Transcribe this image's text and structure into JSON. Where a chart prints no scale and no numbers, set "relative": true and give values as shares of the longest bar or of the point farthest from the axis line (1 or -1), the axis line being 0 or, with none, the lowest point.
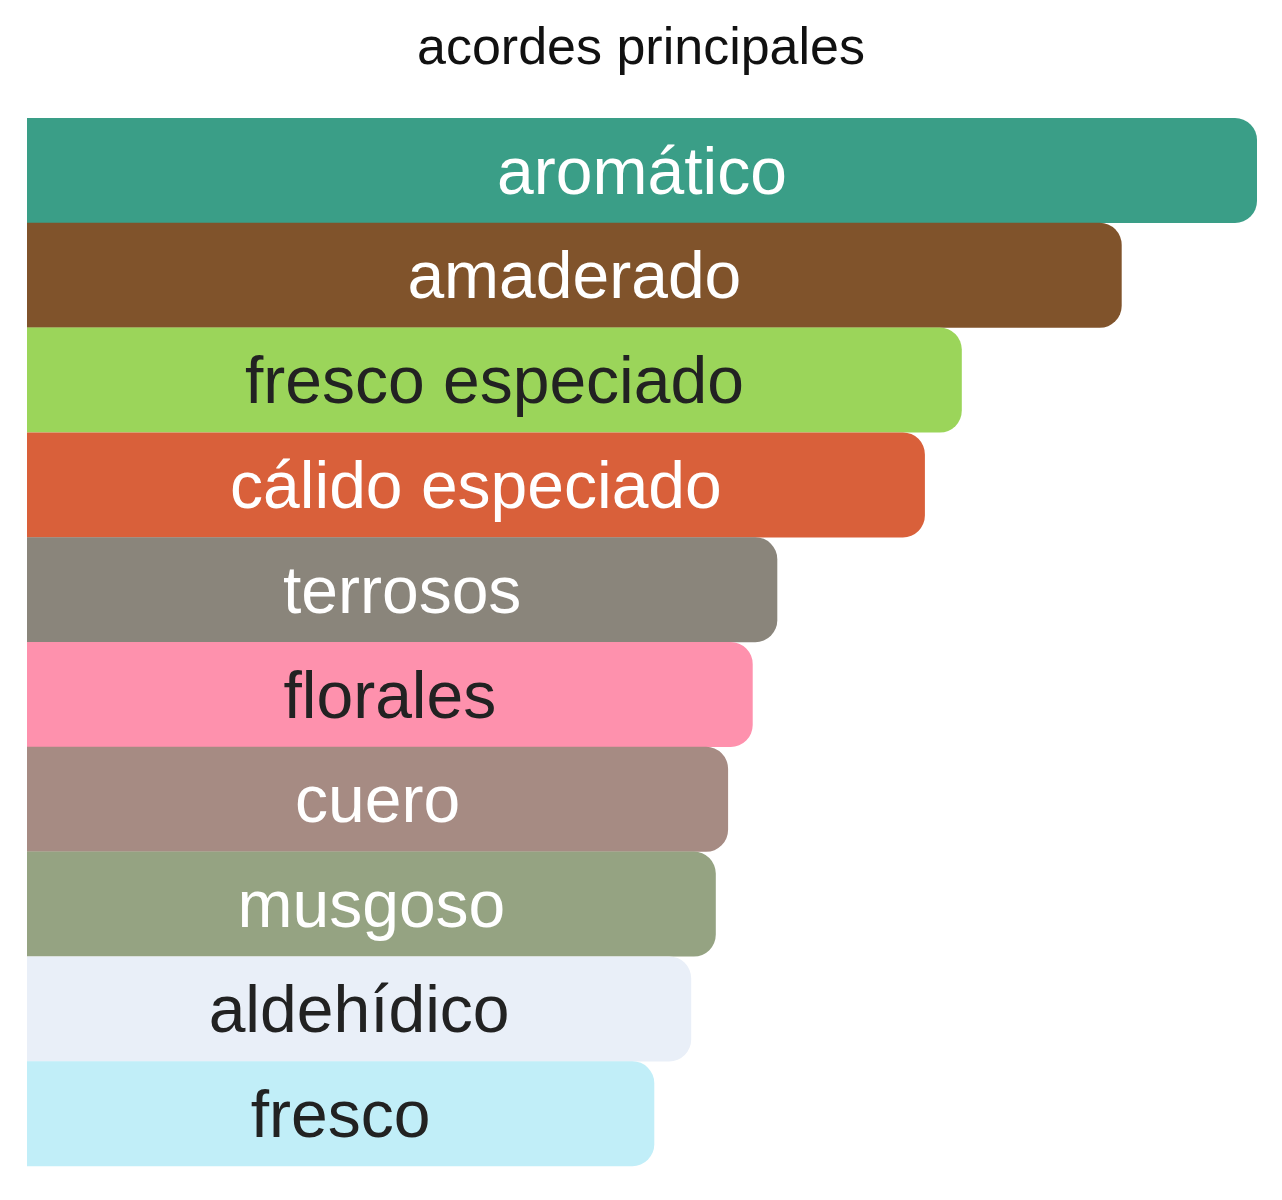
{
  "chart_data": {
    "type": "bar",
    "title": "acordes principales",
    "orientation": "horizontal",
    "relative": true,
    "categories": [
      "aromático",
      "amaderado",
      "fresco especiado",
      "cálido especiado",
      "terrosos",
      "florales",
      "cuero",
      "musgoso",
      "aldehídico",
      "fresco"
    ],
    "values": [
      1,
      0.89,
      0.76,
      0.73,
      0.61,
      0.59,
      0.57,
      0.56,
      0.54,
      0.51
    ],
    "colors": [
      "#3a9e87",
      "#80532b",
      "#9bd55a",
      "#d9603a",
      "#8a857b",
      "#fe91ad",
      "#a68b83",
      "#95a382",
      "#e9eff8",
      "#c1eef8"
    ]
  }
}
